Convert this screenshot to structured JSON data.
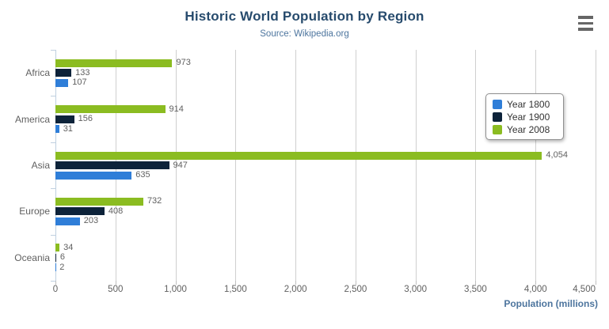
{
  "header": {
    "title": "Historic World Population by Region",
    "subtitle": "Source: Wikipedia.org"
  },
  "toolbar": {
    "context_menu_icon": "hamburger-menu-icon"
  },
  "chart_data": {
    "type": "bar",
    "orientation": "horizontal",
    "title": "Historic World Population by Region",
    "subtitle": "Source: Wikipedia.org",
    "categories": [
      "Africa",
      "America",
      "Asia",
      "Europe",
      "Oceania"
    ],
    "series": [
      {
        "name": "Year 1800",
        "color": "#2f7ed8",
        "values": [
          107,
          31,
          635,
          203,
          2
        ],
        "labels": [
          "107",
          "31",
          "635",
          "203",
          "2"
        ]
      },
      {
        "name": "Year 1900",
        "color": "#0d233a",
        "values": [
          133,
          156,
          947,
          408,
          6
        ],
        "labels": [
          "133",
          "156",
          "947",
          "408",
          "6"
        ]
      },
      {
        "name": "Year 2008",
        "color": "#8bbc21",
        "values": [
          973,
          914,
          4054,
          732,
          34
        ],
        "labels": [
          "973",
          "914",
          "4,054",
          "732",
          "34"
        ]
      }
    ],
    "bar_order_top_to_bottom": [
      "Year 2008",
      "Year 1900",
      "Year 1800"
    ],
    "xlabel": "Population (millions)",
    "ylabel": "",
    "xlim": [
      0,
      4500
    ],
    "xticks": {
      "values": [
        0,
        500,
        1000,
        1500,
        2000,
        2500,
        3000,
        3500,
        4000,
        4500
      ],
      "labels": [
        "0",
        "500",
        "1,000",
        "1,500",
        "2,000",
        "2,500",
        "3,000",
        "3,500",
        "4,000",
        "4,500"
      ]
    },
    "grid": true,
    "legend": {
      "position": "right-top-floating",
      "entries": [
        "Year 1800",
        "Year 1900",
        "Year 2008"
      ]
    }
  }
}
